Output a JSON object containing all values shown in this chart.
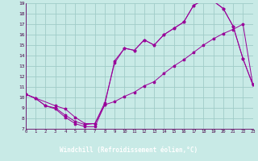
{
  "background_color": "#c8eae6",
  "xlabel_bg_color": "#770077",
  "grid_color": "#a0ccc8",
  "line_color": "#990099",
  "xlim": [
    0,
    23
  ],
  "ylim": [
    7,
    19
  ],
  "xticks": [
    0,
    1,
    2,
    3,
    4,
    5,
    6,
    7,
    8,
    9,
    10,
    11,
    12,
    13,
    14,
    15,
    16,
    17,
    18,
    19,
    20,
    21,
    22,
    23
  ],
  "yticks": [
    7,
    8,
    9,
    10,
    11,
    12,
    13,
    14,
    15,
    16,
    17,
    18,
    19
  ],
  "xlabel": "Windchill (Refroidissement éolien,°C)",
  "line1_x": [
    0,
    1,
    2,
    3,
    4,
    5,
    6,
    7,
    8,
    9,
    10,
    11,
    12,
    13,
    14,
    15,
    16,
    17,
    18,
    19,
    20,
    21,
    22,
    23
  ],
  "line1_y": [
    10.3,
    9.9,
    9.2,
    8.9,
    8.1,
    7.5,
    7.2,
    7.2,
    9.3,
    9.6,
    10.1,
    10.5,
    11.1,
    11.5,
    12.3,
    13.0,
    13.6,
    14.3,
    15.0,
    15.6,
    16.1,
    16.5,
    17.0,
    11.2
  ],
  "line2_x": [
    0,
    1,
    2,
    3,
    4,
    5,
    6,
    7,
    8,
    9,
    10,
    11,
    12,
    13,
    14,
    15,
    16,
    17,
    18,
    19,
    20,
    21,
    22,
    23
  ],
  "line2_y": [
    10.3,
    9.9,
    9.2,
    9.0,
    8.3,
    7.7,
    7.4,
    7.5,
    9.5,
    13.3,
    14.7,
    14.5,
    15.5,
    15.0,
    16.0,
    16.6,
    17.2,
    18.8,
    19.3,
    19.2,
    18.5,
    16.8,
    13.7,
    11.2
  ],
  "line3_x": [
    0,
    3,
    4,
    5,
    6,
    7,
    8,
    9,
    10,
    11,
    12,
    13,
    14,
    15,
    16,
    17,
    18,
    19,
    20,
    21,
    22,
    23
  ],
  "line3_y": [
    10.3,
    9.2,
    8.9,
    8.1,
    7.5,
    7.5,
    9.3,
    13.5,
    14.7,
    14.5,
    15.5,
    15.0,
    16.0,
    16.6,
    17.2,
    18.8,
    19.3,
    19.2,
    18.5,
    16.8,
    13.7,
    11.2
  ]
}
